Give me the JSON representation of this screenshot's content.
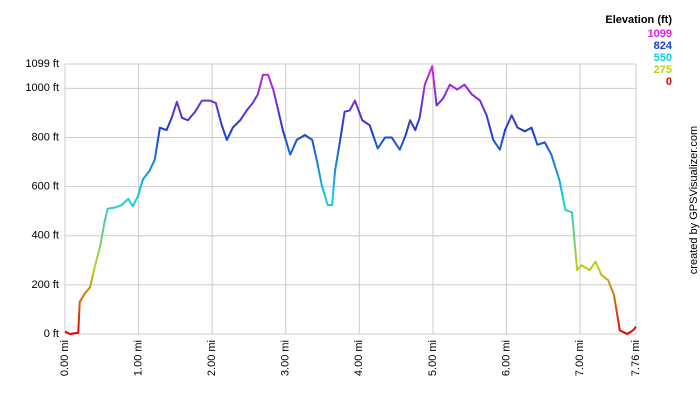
{
  "chart_data": {
    "type": "line",
    "legend_title": "Elevation (ft)",
    "credit": "created by GPSVisualizer.com",
    "color_scale": [
      {
        "value": 1099,
        "color": "#e020e0"
      },
      {
        "value": 824,
        "color": "#1a3cd0"
      },
      {
        "value": 550,
        "color": "#10d0e0"
      },
      {
        "value": 275,
        "color": "#b8d020"
      },
      {
        "value": 0,
        "color": "#e00000"
      }
    ],
    "x": [
      0,
      0.07,
      0.18,
      0.2,
      0.27,
      0.34,
      0.41,
      0.48,
      0.54,
      0.58,
      0.68,
      0.77,
      0.86,
      0.92,
      0.99,
      1.06,
      1.15,
      1.22,
      1.29,
      1.38,
      1.45,
      1.52,
      1.59,
      1.67,
      1.77,
      1.86,
      1.97,
      2.05,
      2.13,
      2.2,
      2.28,
      2.38,
      2.47,
      2.55,
      2.62,
      2.69,
      2.76,
      2.83,
      2.89,
      2.96,
      3.06,
      3.15,
      3.26,
      3.36,
      3.42,
      3.49,
      3.57,
      3.63,
      3.67,
      3.74,
      3.8,
      3.87,
      3.94,
      4.04,
      4.14,
      4.25,
      4.35,
      4.44,
      4.55,
      4.63,
      4.69,
      4.76,
      4.82,
      4.89,
      4.99,
      5.05,
      5.14,
      5.23,
      5.33,
      5.43,
      5.53,
      5.64,
      5.73,
      5.82,
      5.91,
      5.98,
      6.07,
      6.15,
      6.25,
      6.34,
      6.42,
      6.52,
      6.61,
      6.72,
      6.8,
      6.89,
      6.96,
      7.02,
      7.13,
      7.21,
      7.29,
      7.38,
      7.46,
      7.54,
      7.64,
      7.72,
      7.76
    ],
    "y": [
      10,
      0,
      5,
      130,
      165,
      190,
      280,
      360,
      460,
      510,
      515,
      525,
      550,
      520,
      560,
      630,
      665,
      710,
      840,
      830,
      880,
      945,
      880,
      870,
      905,
      950,
      950,
      940,
      850,
      790,
      840,
      870,
      910,
      940,
      975,
      1055,
      1055,
      995,
      920,
      830,
      730,
      790,
      810,
      790,
      710,
      605,
      525,
      525,
      665,
      790,
      905,
      910,
      950,
      870,
      850,
      755,
      800,
      800,
      750,
      810,
      870,
      830,
      880,
      1015,
      1090,
      930,
      960,
      1015,
      995,
      1015,
      975,
      950,
      890,
      790,
      750,
      830,
      890,
      840,
      825,
      840,
      770,
      780,
      730,
      625,
      505,
      495,
      260,
      280,
      260,
      295,
      240,
      220,
      160,
      15,
      0,
      15,
      30
    ],
    "xlim": [
      0,
      7.76
    ],
    "ylim": [
      0,
      1099
    ],
    "xticks": [
      {
        "value": 0,
        "label": "0.00 mi"
      },
      {
        "value": 1,
        "label": "1.00 mi"
      },
      {
        "value": 2,
        "label": "2.00 mi"
      },
      {
        "value": 3,
        "label": "3.00 mi"
      },
      {
        "value": 4,
        "label": "4.00 mi"
      },
      {
        "value": 5,
        "label": "5.00 mi"
      },
      {
        "value": 6,
        "label": "6.00 mi"
      },
      {
        "value": 7,
        "label": "7.00 mi"
      },
      {
        "value": 7.76,
        "label": "7.76 mi"
      }
    ],
    "yticks": [
      {
        "value": 0,
        "label": "0 ft"
      },
      {
        "value": 200,
        "label": "200 ft"
      },
      {
        "value": 400,
        "label": "400 ft"
      },
      {
        "value": 600,
        "label": "600 ft"
      },
      {
        "value": 800,
        "label": "800 ft"
      },
      {
        "value": 1000,
        "label": "1000 ft"
      },
      {
        "value": 1099,
        "label": "1099 ft"
      }
    ],
    "grid": true
  }
}
